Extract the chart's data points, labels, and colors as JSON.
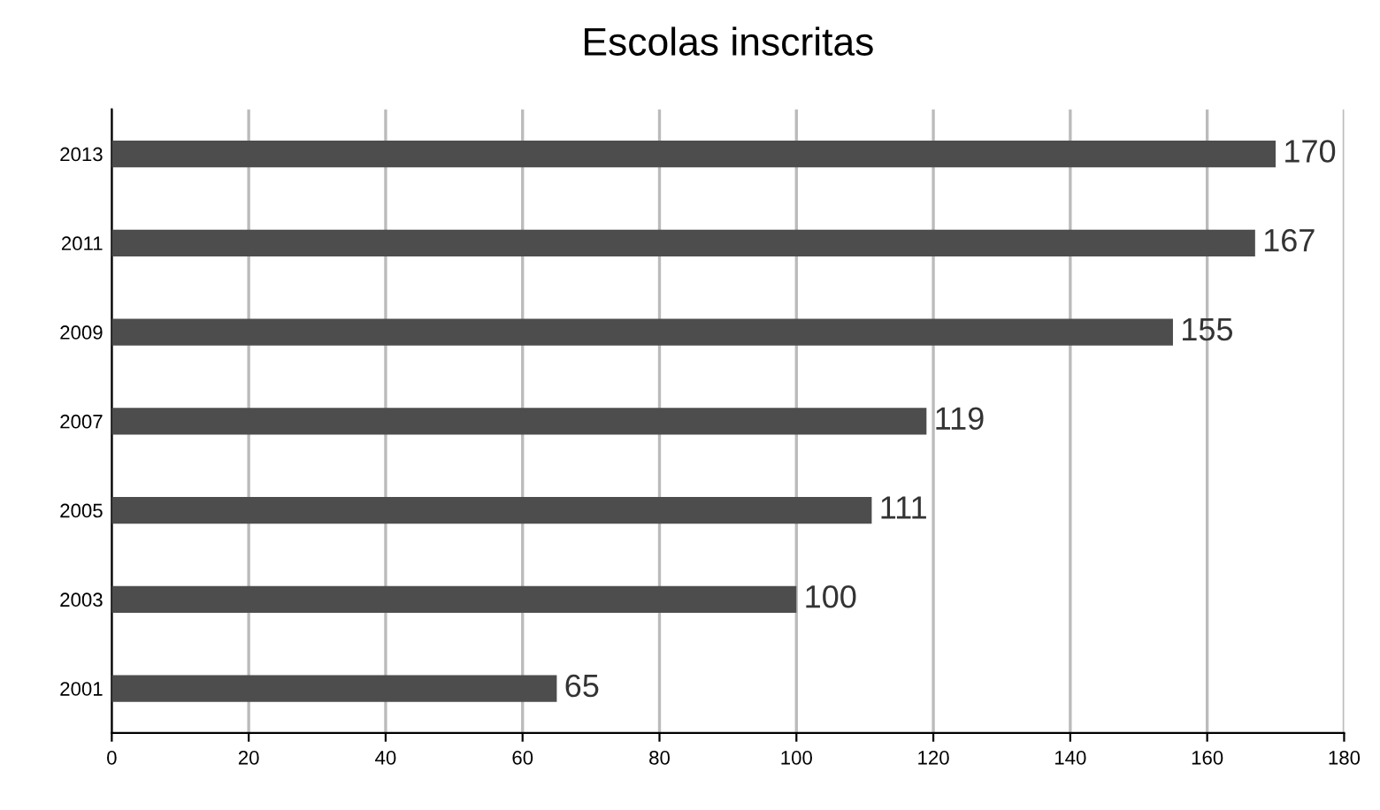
{
  "chart_data": {
    "type": "bar",
    "orientation": "horizontal",
    "title": "Escolas inscritas",
    "categories": [
      "2013",
      "2011",
      "2009",
      "2007",
      "2005",
      "2003",
      "2001"
    ],
    "values": [
      170,
      167,
      155,
      119,
      111,
      100,
      65
    ],
    "color": "#4d4d4d",
    "xlim": [
      0,
      180
    ],
    "xticks": [
      0,
      20,
      40,
      60,
      80,
      100,
      120,
      140,
      160,
      180
    ],
    "grid": "x",
    "data_labels": true
  }
}
